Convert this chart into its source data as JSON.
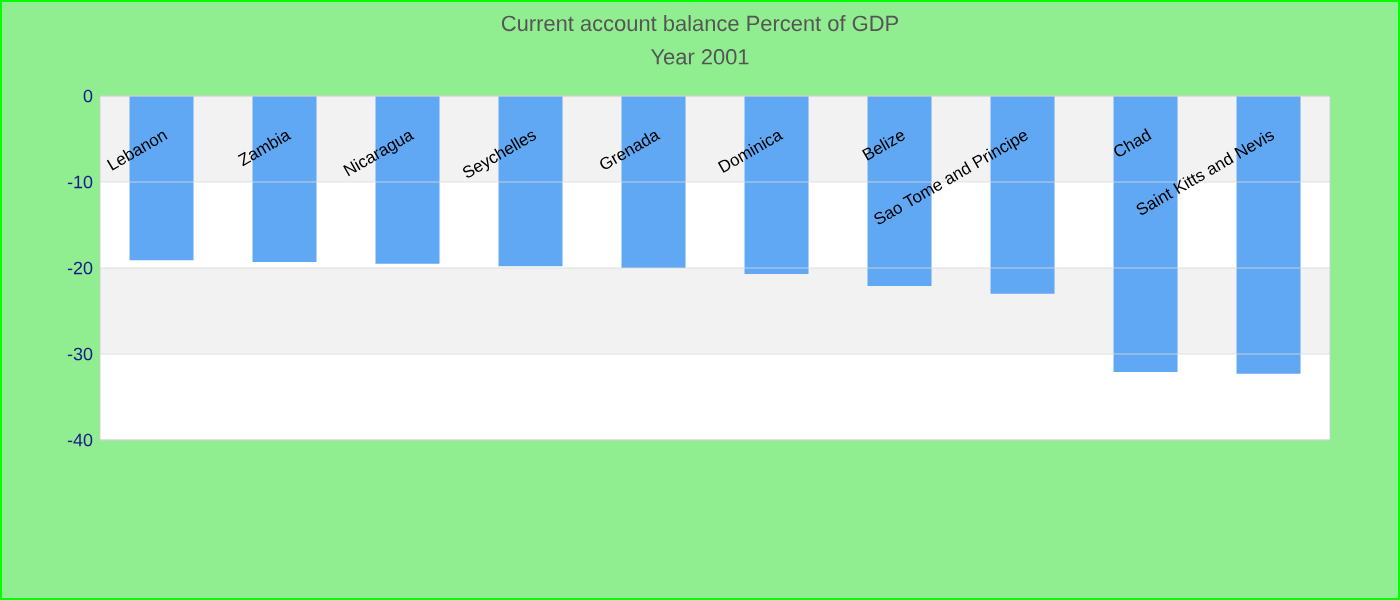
{
  "chart_data": {
    "type": "bar",
    "title": "Current account balance  Percent of GDP",
    "subtitle": "Year 2001",
    "categories": [
      "Lebanon",
      "Zambia",
      "Nicaragua",
      "Seychelles",
      "Grenada",
      "Dominica",
      "Belize",
      "Sao Tome and Principe",
      "Chad",
      "Saint Kitts and Nevis"
    ],
    "values": [
      -19.1,
      -19.3,
      -19.5,
      -19.8,
      -20.0,
      -20.7,
      -22.1,
      -23.0,
      -32.1,
      -32.3
    ],
    "color": "#60a8f4",
    "ylim": [
      -40,
      0
    ],
    "yticks": [
      -40,
      -30,
      -20,
      -10,
      0
    ],
    "grid": "y"
  }
}
